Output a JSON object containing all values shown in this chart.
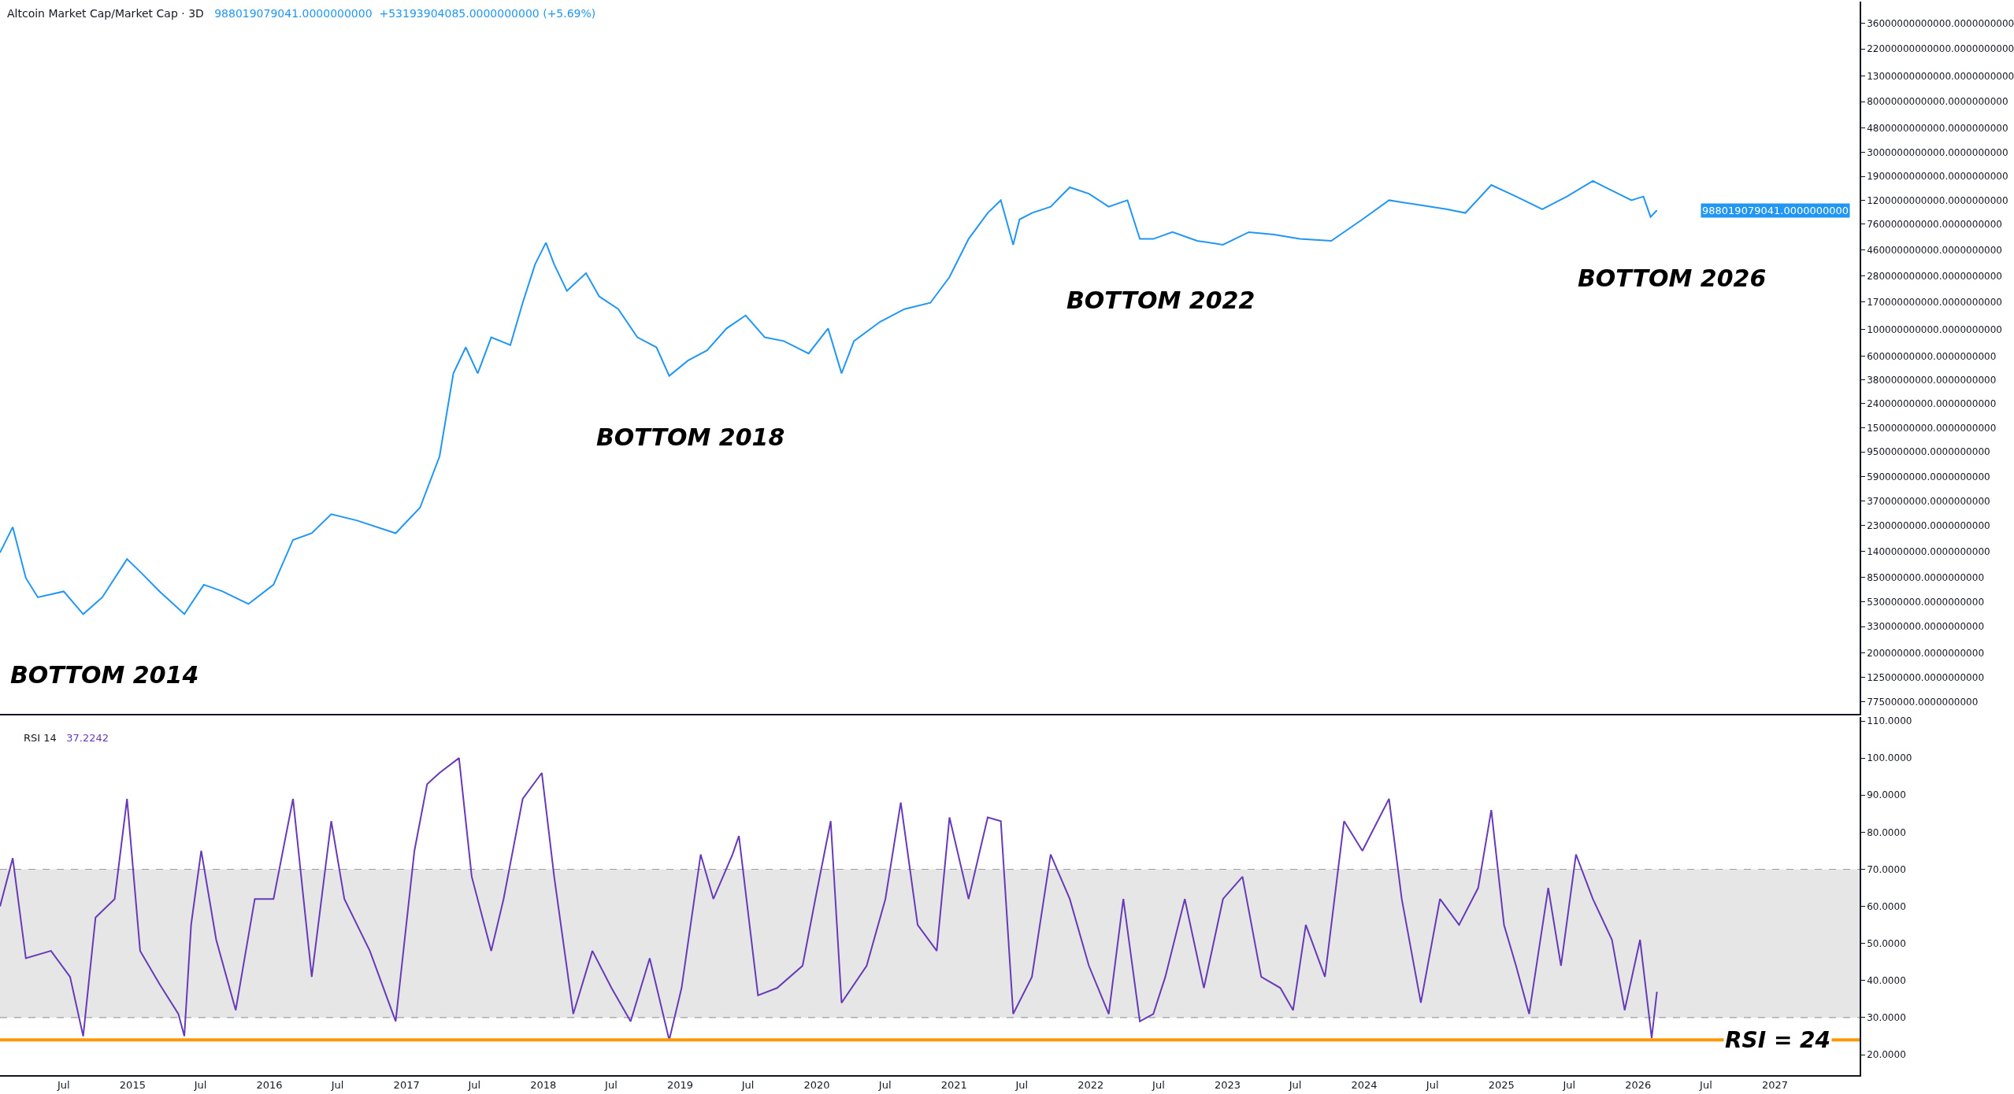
{
  "chart_data": [
    {
      "type": "line",
      "title": "Altcoin Market Cap/Market Cap · 3D",
      "subtitle": "988019079041.0000000000  +53193904085.0000000000 (+5.69%)",
      "x": [
        "2014-01-12",
        "2014-02-15",
        "2014-03-22",
        "2014-04-23",
        "2014-07-01",
        "2014-08-22",
        "2014-10-12",
        "2014-12-17",
        "2015-01-21",
        "2015-03-14",
        "2015-05-19",
        "2015-07-10",
        "2015-08-29",
        "2015-11-06",
        "2016-01-12",
        "2016-03-04",
        "2016-04-23",
        "2016-06-14",
        "2016-08-22",
        "2016-12-03",
        "2017-02-06",
        "2017-03-30",
        "2017-05-06",
        "2017-06-08",
        "2017-07-10",
        "2017-08-15",
        "2017-10-05",
        "2017-11-07",
        "2017-12-10",
        "2018-01-08",
        "2018-01-30",
        "2018-03-05",
        "2018-04-25",
        "2018-05-30",
        "2018-07-20",
        "2018-09-09",
        "2018-10-30",
        "2018-12-03",
        "2019-01-22",
        "2019-03-14",
        "2019-05-05",
        "2019-06-25",
        "2019-08-15",
        "2019-10-05",
        "2019-12-10",
        "2020-01-31",
        "2020-03-07",
        "2020-04-09",
        "2020-06-18",
        "2020-08-22",
        "2020-10-30",
        "2020-12-20",
        "2021-02-09",
        "2021-04-01",
        "2021-05-06",
        "2021-06-08",
        "2021-06-25",
        "2021-07-28",
        "2021-09-16",
        "2021-11-06",
        "2021-12-27",
        "2022-02-18",
        "2022-04-09",
        "2022-05-12",
        "2022-06-17",
        "2022-08-07",
        "2022-10-12",
        "2022-12-20",
        "2023-02-27",
        "2023-05-05",
        "2023-07-13",
        "2023-10-05",
        "2023-12-27",
        "2024-03-07",
        "2024-05-15",
        "2024-08-07",
        "2024-09-27",
        "2024-12-05",
        "2025-02-09",
        "2025-04-20",
        "2025-06-25",
        "2025-09-02",
        "2025-10-05",
        "2025-12-14",
        "2026-01-15",
        "2026-02-03",
        "2026-02-20"
      ],
      "series": [
        {
          "color": "#2196f3",
          "values": [
            1370000000.0,
            2240000000.0,
            840000000.0,
            580000000.0,
            650000000.0,
            420000000.0,
            580000000.0,
            1210000000.0,
            950000000.0,
            650000000.0,
            420000000.0,
            740000000.0,
            650000000.0,
            510000000.0,
            740000000.0,
            1750000000.0,
            1990000000.0,
            2870000000.0,
            2540000000.0,
            1990000000.0,
            3250000000.0,
            8700000000.0,
            43000000000.0,
            71000000000.0,
            43000000000.0,
            86000000000.0,
            74000000000.0,
            167000000000.0,
            350000000000.0,
            530000000000.0,
            350000000000.0,
            210000000000.0,
            295000000000.0,
            189000000000.0,
            148000000000.0,
            86000000000.0,
            71000000000.0,
            41000000000.0,
            55000000000.0,
            67000000000.0,
            102000000000.0,
            131000000000.0,
            86000000000.0,
            80000000000.0,
            63000000000.0,
            102000000000.0,
            43000000000.0,
            80000000000.0,
            116000000000.0,
            148000000000.0,
            167000000000.0,
            274000000000.0,
            570000000000.0,
            940000000000.0,
            1200000000000.0,
            510000000000.0,
            830000000000.0,
            940000000000.0,
            1060000000000.0,
            1540000000000.0,
            1360000000000.0,
            1060000000000.0,
            1200000000000.0,
            570000000000.0,
            570000000000.0,
            650000000000.0,
            550000000000.0,
            510000000000.0,
            650000000000.0,
            620000000000.0,
            570000000000.0,
            550000000000.0,
            830000000000.0,
            1200000000000.0,
            1110000000000.0,
            1010000000000.0,
            940000000000.0,
            1610000000000.0,
            1290000000000.0,
            1010000000000.0,
            1290000000000.0,
            1740000000000.0,
            1540000000000.0,
            1200000000000.0,
            1290000000000.0,
            870000000000.0,
            988019079041
          ]
        }
      ],
      "log": "y",
      "xlim": [
        "2014-01-12",
        "2027-08-15"
      ],
      "ylim": [
        61500000.0,
        54700000000000.0
      ],
      "yticks": [
        {
          "value": 36000000000000.0,
          "label": "36000000000000.0000000000"
        },
        {
          "value": 22000000000000.0,
          "label": "22000000000000.0000000000"
        },
        {
          "value": 13000000000000.0,
          "label": "13000000000000.0000000000"
        },
        {
          "value": 8000000000000.0,
          "label": "8000000000000.0000000000"
        },
        {
          "value": 4800000000000.0,
          "label": "4800000000000.0000000000"
        },
        {
          "value": 3000000000000.0,
          "label": "3000000000000.0000000000"
        },
        {
          "value": 1900000000000.0,
          "label": "1900000000000.0000000000"
        },
        {
          "value": 1200000000000.0,
          "label": "1200000000000.0000000000"
        },
        {
          "value": 760000000000.0,
          "label": "760000000000.0000000000"
        },
        {
          "value": 460000000000.0,
          "label": "460000000000.0000000000"
        },
        {
          "value": 280000000000.0,
          "label": "280000000000.0000000000"
        },
        {
          "value": 170000000000.0,
          "label": "170000000000.0000000000"
        },
        {
          "value": 100000000000.0,
          "label": "100000000000.0000000000"
        },
        {
          "value": 60000000000.0,
          "label": "60000000000.0000000000"
        },
        {
          "value": 38000000000.0,
          "label": "38000000000.0000000000"
        },
        {
          "value": 24000000000.0,
          "label": "24000000000.0000000000"
        },
        {
          "value": 15000000000.0,
          "label": "15000000000.0000000000"
        },
        {
          "value": 9500000000.0,
          "label": "9500000000.0000000000"
        },
        {
          "value": 5900000000.0,
          "label": "5900000000.0000000000"
        },
        {
          "value": 3700000000.0,
          "label": "3700000000.0000000000"
        },
        {
          "value": 2300000000.0,
          "label": "2300000000.0000000000"
        },
        {
          "value": 1400000000.0,
          "label": "1400000000.0000000000"
        },
        {
          "value": 850000000.0,
          "label": "850000000.0000000000"
        },
        {
          "value": 530000000.0,
          "label": "530000000.0000000000"
        },
        {
          "value": 330000000.0,
          "label": "330000000.0000000000"
        },
        {
          "value": 200000000.0,
          "label": "200000000.0000000000"
        },
        {
          "value": 125000000.0,
          "label": "125000000.0000000000"
        },
        {
          "value": 77500000.0,
          "label": "77500000.0000000000"
        }
      ],
      "tick_labels": "y",
      "annotations": [
        {
          "text": "BOTTOM 2014",
          "x": "2014-08-22",
          "y": 420000000.0
        },
        {
          "text": "BOTTOM 2018",
          "x": "2018-12-03",
          "y": 41000000000.0
        },
        {
          "text": "BOTTOM 2022",
          "x": "2022-05-12",
          "y": 570000000000.0
        },
        {
          "text": "BOTTOM 2026",
          "x": "2026-02-03",
          "y": 870000000000.0
        },
        "988019079041.0000000000"
      ]
    },
    {
      "type": "line",
      "title": "RSI 14",
      "subtitle": "37.2242",
      "x": [
        "2014-01-12",
        "2014-02-15",
        "2014-03-22",
        "2014-05-28",
        "2014-07-18",
        "2014-08-22",
        "2014-09-24",
        "2014-11-14",
        "2014-12-17",
        "2015-01-21",
        "2015-03-14",
        "2015-05-03",
        "2015-05-19",
        "2015-06-06",
        "2015-07-03",
        "2015-08-12",
        "2015-10-03",
        "2015-11-23",
        "2016-01-12",
        "2016-03-04",
        "2016-04-23",
        "2016-06-14",
        "2016-07-19",
        "2016-09-25",
        "2016-12-03",
        "2017-01-22",
        "2017-02-25",
        "2017-03-30",
        "2017-05-21",
        "2017-06-24",
        "2017-08-15",
        "2017-09-17",
        "2017-11-07",
        "2017-12-28",
        "2018-01-30",
        "2018-03-22",
        "2018-05-12",
        "2018-07-02",
        "2018-08-22",
        "2018-10-12",
        "2018-12-03",
        "2019-01-05",
        "2019-02-25",
        "2019-03-31",
        "2019-05-21",
        "2019-06-07",
        "2019-07-28",
        "2019-09-17",
        "2019-11-24",
        "2019-12-28",
        "2020-02-07",
        "2020-03-07",
        "2020-05-13",
        "2020-07-02",
        "2020-08-12",
        "2020-09-26",
        "2020-11-16",
        "2020-12-20",
        "2021-02-09",
        "2021-04-01",
        "2021-05-06",
        "2021-06-08",
        "2021-07-28",
        "2021-09-16",
        "2021-11-06",
        "2021-12-27",
        "2022-02-18",
        "2022-03-29",
        "2022-05-12",
        "2022-06-17",
        "2022-07-19",
        "2022-09-09",
        "2022-10-30",
        "2022-12-20",
        "2023-02-10",
        "2023-04-01",
        "2023-05-22",
        "2023-06-25",
        "2023-07-29",
        "2023-09-18",
        "2023-11-08",
        "2023-12-27",
        "2024-03-07",
        "2024-04-10",
        "2024-05-31",
        "2024-07-21",
        "2024-09-10",
        "2024-10-31",
        "2024-12-05",
        "2025-01-08",
        "2025-02-09",
        "2025-03-16",
        "2025-05-06",
        "2025-06-09",
        "2025-07-19",
        "2025-09-02",
        "2025-10-23",
        "2025-11-26",
        "2026-01-06",
        "2026-02-06",
        "2026-02-20"
      ],
      "series": [
        {
          "color": "#673ab7",
          "values": [
            60,
            73,
            46,
            48,
            41,
            25,
            57,
            62,
            89,
            48,
            39,
            31,
            25,
            55,
            75,
            51,
            32,
            62,
            62,
            89,
            41,
            83,
            62,
            48,
            29,
            75,
            93,
            96,
            100,
            68,
            48,
            62,
            89,
            96,
            68,
            31,
            48,
            38,
            29,
            46,
            24,
            38,
            74,
            62,
            74,
            79,
            36,
            38,
            44,
            62,
            83,
            34,
            44,
            62,
            88,
            55,
            48,
            84,
            62,
            84,
            83,
            31,
            41,
            74,
            62,
            44,
            31,
            62,
            29,
            31,
            41,
            62,
            38,
            62,
            68,
            41,
            38,
            32,
            55,
            41,
            83,
            75,
            89,
            62,
            34,
            62,
            55,
            65,
            86,
            55,
            44,
            31,
            65,
            44,
            74,
            62,
            51,
            32,
            51,
            24.5,
            37
          ]
        }
      ],
      "xlim": [
        "2014-01-12",
        "2027-08-15"
      ],
      "ylim": [
        14.5,
        111
      ],
      "xticks": [
        {
          "value": "2014-07-01",
          "label": "Jul"
        },
        {
          "value": "2015-01-01",
          "label": "2015"
        },
        {
          "value": "2015-07-01",
          "label": "Jul"
        },
        {
          "value": "2016-01-01",
          "label": "2016"
        },
        {
          "value": "2016-07-01",
          "label": "Jul"
        },
        {
          "value": "2017-01-01",
          "label": "2017"
        },
        {
          "value": "2017-07-01",
          "label": "Jul"
        },
        {
          "value": "2018-01-01",
          "label": "2018"
        },
        {
          "value": "2018-07-01",
          "label": "Jul"
        },
        {
          "value": "2019-01-01",
          "label": "2019"
        },
        {
          "value": "2019-07-01",
          "label": "Jul"
        },
        {
          "value": "2020-01-01",
          "label": "2020"
        },
        {
          "value": "2020-07-01",
          "label": "Jul"
        },
        {
          "value": "2021-01-01",
          "label": "2021"
        },
        {
          "value": "2021-07-01",
          "label": "Jul"
        },
        {
          "value": "2022-01-01",
          "label": "2022"
        },
        {
          "value": "2022-07-01",
          "label": "Jul"
        },
        {
          "value": "2023-01-01",
          "label": "2023"
        },
        {
          "value": "2023-07-01",
          "label": "Jul"
        },
        {
          "value": "2024-01-01",
          "label": "2024"
        },
        {
          "value": "2024-07-01",
          "label": "Jul"
        },
        {
          "value": "2025-01-01",
          "label": "2025"
        },
        {
          "value": "2025-07-01",
          "label": "Jul"
        },
        {
          "value": "2026-01-01",
          "label": "2026"
        },
        {
          "value": "2026-07-01",
          "label": "Jul"
        },
        {
          "value": "2027-01-01",
          "label": "2027"
        }
      ],
      "yticks": [
        {
          "value": 110,
          "label": "110.0000"
        },
        {
          "value": 100,
          "label": "100.0000"
        },
        {
          "value": 90,
          "label": "90.0000"
        },
        {
          "value": 80,
          "label": "80.0000"
        },
        {
          "value": 70,
          "label": "70.0000"
        },
        {
          "value": 60,
          "label": "60.0000"
        },
        {
          "value": 50,
          "label": "50.0000"
        },
        {
          "value": 40,
          "label": "40.0000"
        },
        {
          "value": 30,
          "label": "30.0000"
        },
        {
          "value": 20,
          "label": "20.0000"
        }
      ],
      "bands": [
        {
          "axis": "y",
          "from": 30,
          "to": 70,
          "color": "#e6e6e6"
        }
      ],
      "ref_lines": [
        {
          "axis": "y",
          "value": 70,
          "color": "#9e9e9e",
          "line_style": "dashed"
        },
        {
          "axis": "y",
          "value": 30,
          "color": "#9e9e9e",
          "line_style": "dashed"
        },
        {
          "axis": "y",
          "value": 24,
          "color": "#ff9800",
          "line_style": "solid",
          "label": "RSI = 24"
        }
      ]
    }
  ]
}
